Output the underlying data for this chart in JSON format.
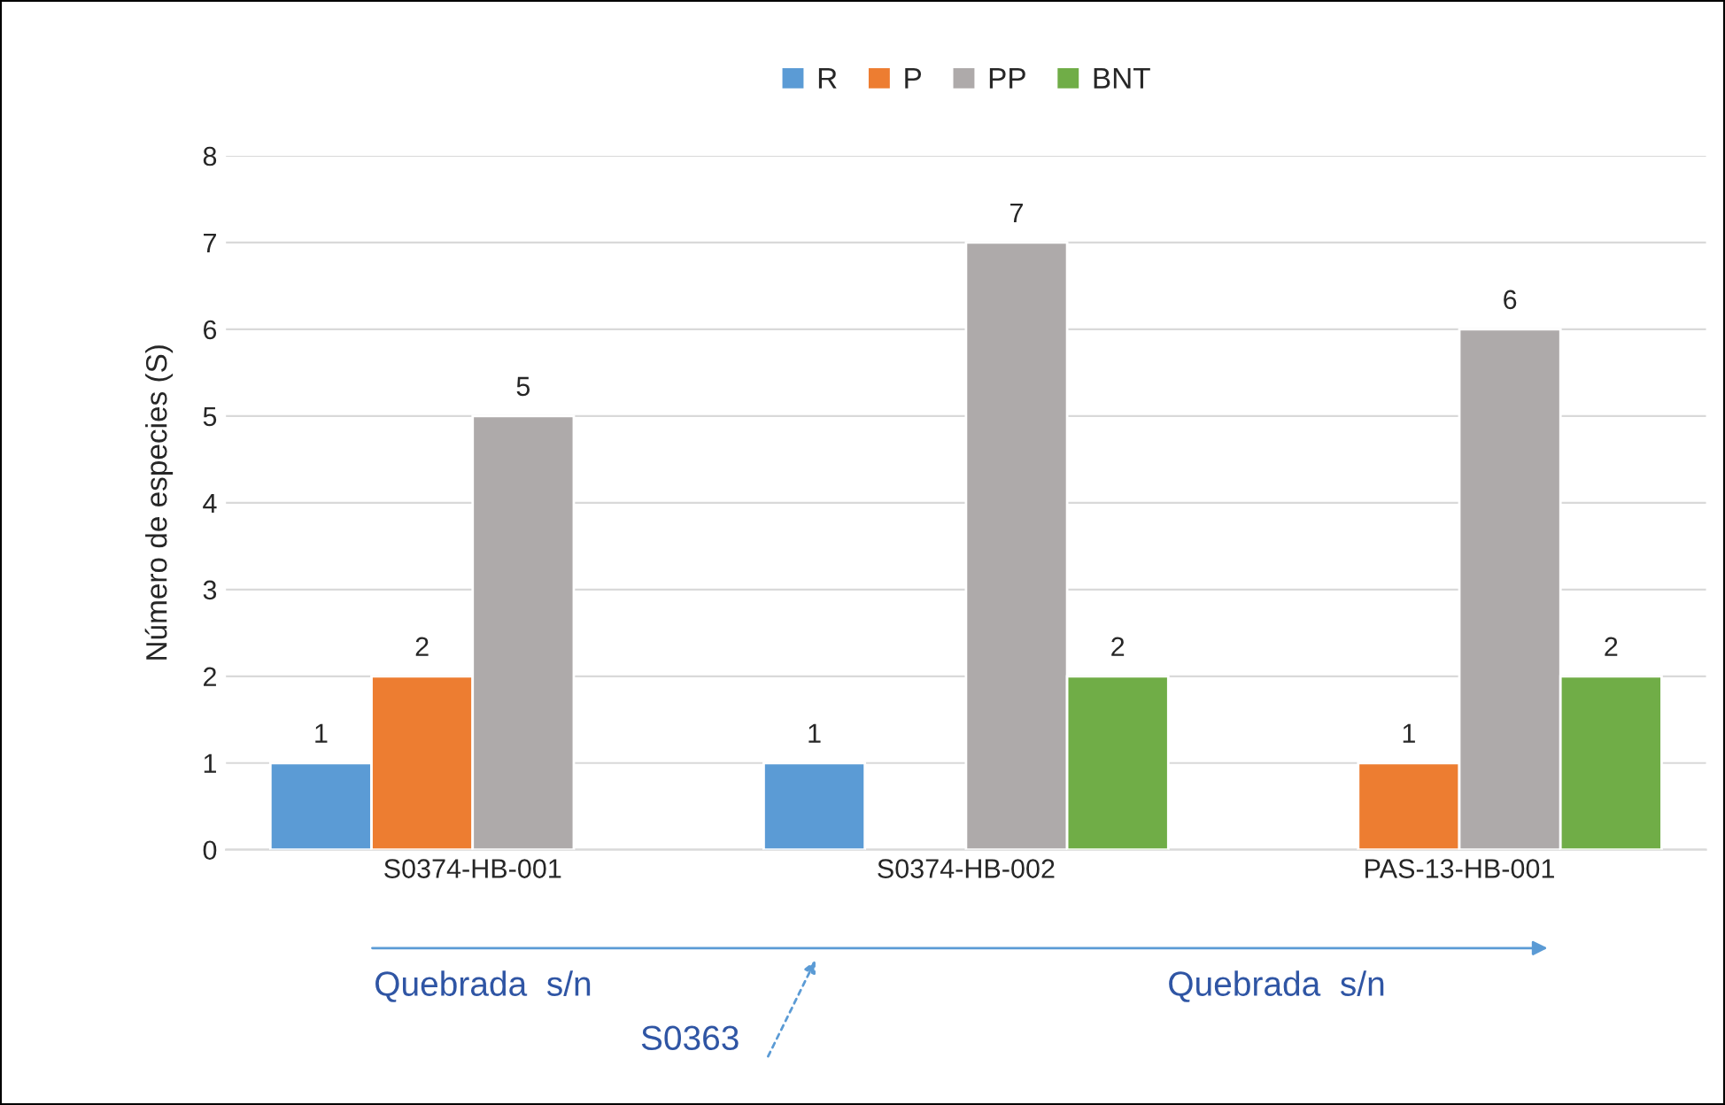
{
  "chart_data": {
    "type": "bar",
    "ylabel": "Número de especies (S)",
    "categories": [
      "S0374-HB-001",
      "S0374-HB-002",
      "PAS-13-HB-001"
    ],
    "series": [
      {
        "name": "R",
        "color": "#5b9bd5",
        "values": [
          1,
          1,
          null
        ]
      },
      {
        "name": "P",
        "color": "#ed7d31",
        "values": [
          2,
          null,
          1
        ]
      },
      {
        "name": "PP",
        "color": "#aeaaaa",
        "values": [
          5,
          7,
          6
        ]
      },
      {
        "name": "BNT",
        "color": "#70ad47",
        "values": [
          null,
          2,
          2
        ]
      }
    ],
    "ylim": [
      0,
      8
    ],
    "yticks": [
      0,
      1,
      2,
      3,
      4,
      5,
      6,
      7,
      8
    ],
    "grid": "y",
    "legend": "top",
    "data_labels": true,
    "annotations": [
      "Quebrada  s/n",
      "S0363",
      "Quebrada  s/n"
    ]
  }
}
